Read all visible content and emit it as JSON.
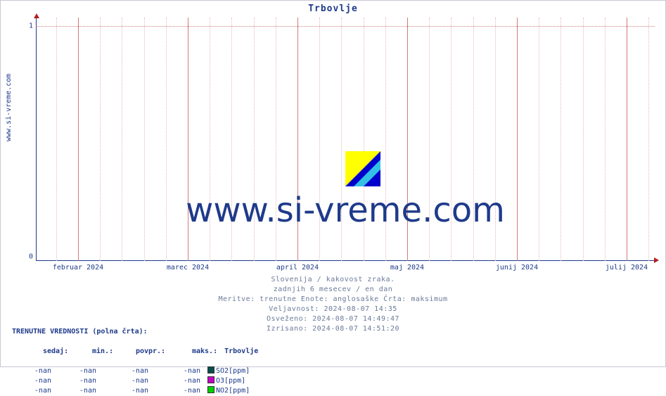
{
  "chart": {
    "title": "Trbovlje",
    "type": "line",
    "background_color": "#ffffff",
    "axis_color": "#1e3a8a",
    "arrow_color": "#b02020",
    "grid_minor_color": "#e6b8b8",
    "grid_major_color": "#d47a7a",
    "title_fontsize": 13,
    "label_fontsize": 10,
    "ylim": [
      0,
      1
    ],
    "yticks": [
      0,
      1
    ],
    "x_months": [
      "februar 2024",
      "marec 2024",
      "april 2024",
      "maj 2024",
      "junij 2024",
      "julij 2024"
    ],
    "y_side_label": "www.si-vreme.com",
    "watermark_text": "www.si-vreme.com",
    "watermark_font_family": "DejaVu Sans",
    "watermark_fontsize": 48,
    "watermark_text_color": "#1e3a8a",
    "logo_colors": {
      "tri1": "#ffff00",
      "tri2": "#33bfe6",
      "tri3": "#0000cc"
    }
  },
  "meta": {
    "line1": "Slovenija / kakovost zraka.",
    "line2": "zadnjih 6 mesecev / en dan",
    "line3": "Meritve: trenutne  Enote: anglosaške  Črta: maksimum",
    "line4": "Veljavnost: 2024-08-07 14:35",
    "line5": "Osveženo: 2024-08-07 14:49:47",
    "line6": "Izrisano: 2024-08-07 14:51:20",
    "text_color": "#6b7a99"
  },
  "legend": {
    "header": "TRENUTNE VREDNOSTI (polna črta):",
    "columns": {
      "now": "sedaj:",
      "min": "min.:",
      "avg": "povpr.:",
      "max": "maks.:",
      "loc": "Trbovlje"
    },
    "rows": [
      {
        "now": "-nan",
        "min": "-nan",
        "avg": "-nan",
        "max": "-nan",
        "color": "#0a4d4d",
        "label": "SO2[ppm]"
      },
      {
        "now": "-nan",
        "min": "-nan",
        "avg": "-nan",
        "max": "-nan",
        "color": "#c400c4",
        "label": "O3[ppm]"
      },
      {
        "now": "-nan",
        "min": "-nan",
        "avg": "-nan",
        "max": "-nan",
        "color": "#00d000",
        "label": "NO2[ppm]"
      }
    ],
    "text_color": "#1e3a8a"
  }
}
